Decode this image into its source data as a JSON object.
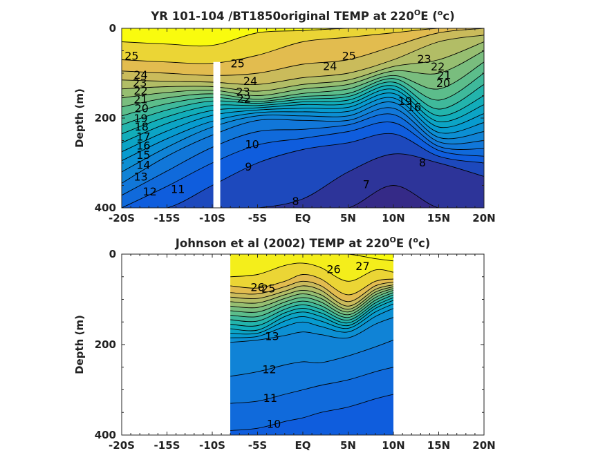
{
  "chart_data": [
    {
      "type": "heatmap",
      "subtype": "filled-contour",
      "title": "YR 101-104 /BT1850original TEMP at 220ºE (ºc)",
      "title_parts": {
        "main": "YR 101-104 /BT1850original TEMP at 220",
        "sup1": "O",
        "mid": "E (",
        "sup2": "o",
        "end": "c)"
      },
      "ylabel": "Depth (m)",
      "xlim": [
        -20,
        20
      ],
      "ylim": [
        400,
        0
      ],
      "y_reversed": true,
      "x_ticks": [
        -20,
        -15,
        -10,
        -5,
        0,
        5,
        10,
        15,
        20
      ],
      "x_tick_labels": [
        "-20S",
        "-15S",
        "-10S",
        "-5S",
        "EQ",
        "5N",
        "10N",
        "15N",
        "20N"
      ],
      "y_ticks": [
        0,
        200,
        400
      ],
      "y_tick_labels": [
        "0",
        "200",
        "400"
      ],
      "data_extent_x": [
        -20,
        20
      ],
      "gap_column_x": -9.5,
      "colormap": "parula",
      "color_range": [
        7,
        27
      ],
      "contour_levels": [
        7,
        8,
        9,
        10,
        11,
        12,
        13,
        14,
        15,
        16,
        17,
        18,
        19,
        20,
        21,
        22,
        23,
        24,
        25,
        26,
        27
      ],
      "contour_labels": [
        {
          "text": "25",
          "x": -18.9,
          "y": 70
        },
        {
          "text": "24",
          "x": -17.9,
          "y": 112
        },
        {
          "text": "23",
          "x": -18.0,
          "y": 130
        },
        {
          "text": "22",
          "x": -17.9,
          "y": 148
        },
        {
          "text": "21",
          "x": -17.9,
          "y": 167
        },
        {
          "text": "20",
          "x": -17.8,
          "y": 187
        },
        {
          "text": "19",
          "x": -17.9,
          "y": 209
        },
        {
          "text": "18",
          "x": -17.8,
          "y": 228
        },
        {
          "text": "17",
          "x": -17.6,
          "y": 250
        },
        {
          "text": "16",
          "x": -17.6,
          "y": 270
        },
        {
          "text": "15",
          "x": -17.6,
          "y": 291
        },
        {
          "text": "14",
          "x": -17.6,
          "y": 313
        },
        {
          "text": "13",
          "x": -17.9,
          "y": 339
        },
        {
          "text": "12",
          "x": -16.9,
          "y": 372
        },
        {
          "text": "11",
          "x": -13.8,
          "y": 367
        },
        {
          "text": "25",
          "x": -7.2,
          "y": 87
        },
        {
          "text": "24",
          "x": -5.8,
          "y": 126
        },
        {
          "text": "23",
          "x": -6.6,
          "y": 150
        },
        {
          "text": "22",
          "x": -6.5,
          "y": 165
        },
        {
          "text": "10",
          "x": -5.6,
          "y": 267
        },
        {
          "text": "9",
          "x": -6.0,
          "y": 317
        },
        {
          "text": "8",
          "x": -0.8,
          "y": 394
        },
        {
          "text": "7",
          "x": 7.0,
          "y": 356
        },
        {
          "text": "8",
          "x": 13.2,
          "y": 308
        },
        {
          "text": "24",
          "x": 3.0,
          "y": 93
        },
        {
          "text": "25",
          "x": 5.1,
          "y": 70
        },
        {
          "text": "23",
          "x": 13.4,
          "y": 77
        },
        {
          "text": "22",
          "x": 14.9,
          "y": 94
        },
        {
          "text": "21",
          "x": 15.6,
          "y": 113
        },
        {
          "text": "20",
          "x": 15.5,
          "y": 131
        },
        {
          "text": "19",
          "x": 11.3,
          "y": 171
        },
        {
          "text": "16",
          "x": 12.3,
          "y": 184
        }
      ],
      "sections_x": [
        -20,
        -15,
        -10,
        -5,
        0,
        5,
        10,
        15,
        20
      ],
      "isotherm_depths_m": {
        "26": [
          30,
          35,
          38,
          10,
          5,
          0,
          0,
          0,
          0
        ],
        "25": [
          70,
          75,
          78,
          60,
          30,
          20,
          10,
          0,
          0
        ],
        "24": [
          95,
          100,
          105,
          100,
          80,
          70,
          40,
          10,
          0
        ],
        "23": [
          115,
          118,
          120,
          125,
          110,
          100,
          70,
          30,
          15
        ],
        "22": [
          135,
          130,
          130,
          140,
          125,
          115,
          85,
          70,
          30
        ],
        "21": [
          155,
          143,
          138,
          150,
          135,
          125,
          95,
          100,
          50
        ],
        "20": [
          175,
          155,
          146,
          158,
          145,
          135,
          105,
          135,
          75
        ],
        "19": [
          195,
          168,
          154,
          163,
          152,
          145,
          112,
          160,
          100
        ],
        "18": [
          215,
          182,
          162,
          167,
          158,
          152,
          120,
          180,
          125
        ],
        "17": [
          235,
          197,
          172,
          172,
          164,
          160,
          128,
          195,
          150
        ],
        "16": [
          255,
          212,
          183,
          177,
          170,
          168,
          136,
          208,
          170
        ],
        "15": [
          275,
          229,
          194,
          182,
          178,
          176,
          145,
          220,
          190
        ],
        "14": [
          295,
          246,
          207,
          188,
          186,
          185,
          155,
          232,
          210
        ],
        "13": [
          320,
          265,
          220,
          195,
          195,
          195,
          165,
          243,
          230
        ],
        "12": [
          345,
          285,
          238,
          205,
          205,
          205,
          178,
          253,
          250
        ],
        "11": [
          372,
          318,
          265,
          230,
          225,
          215,
          192,
          263,
          268
        ],
        "10": [
          400,
          352,
          300,
          260,
          245,
          230,
          210,
          272,
          285
        ],
        "9": [
          400,
          400,
          350,
          300,
          270,
          255,
          235,
          285,
          300
        ],
        "8": [
          400,
          400,
          400,
          400,
          380,
          320,
          280,
          300,
          330
        ],
        "7": [
          400,
          400,
          400,
          400,
          400,
          400,
          350,
          400,
          400
        ]
      }
    },
    {
      "type": "heatmap",
      "subtype": "filled-contour",
      "title": "Johnson et al (2002) TEMP at 220ºE (ºc)",
      "title_parts": {
        "main": "Johnson et al (2002) TEMP at 220",
        "sup1": "O",
        "mid": "E (",
        "sup2": "o",
        "end": "c)"
      },
      "ylabel": "Depth (m)",
      "xlim": [
        -20,
        20
      ],
      "ylim": [
        400,
        0
      ],
      "y_reversed": true,
      "x_ticks": [
        -20,
        -15,
        -10,
        -5,
        0,
        5,
        10,
        15,
        20
      ],
      "x_tick_labels": [
        "-20S",
        "-15S",
        "-10S",
        "-5S",
        "EQ",
        "5N",
        "10N",
        "15N",
        "20N"
      ],
      "y_ticks": [
        0,
        200,
        400
      ],
      "y_tick_labels": [
        "0",
        "200",
        "400"
      ],
      "data_extent_x": [
        -8,
        10
      ],
      "colormap": "parula",
      "color_range": [
        7,
        27
      ],
      "contour_levels": [
        10,
        11,
        12,
        13,
        14,
        15,
        16,
        17,
        18,
        19,
        20,
        21,
        22,
        23,
        24,
        25,
        26,
        27
      ],
      "contour_labels": [
        {
          "text": "26",
          "x": -5.0,
          "y": 82
        },
        {
          "text": "25",
          "x": -3.8,
          "y": 85
        },
        {
          "text": "13",
          "x": -3.4,
          "y": 190
        },
        {
          "text": "12",
          "x": -3.7,
          "y": 263
        },
        {
          "text": "11",
          "x": -3.6,
          "y": 327
        },
        {
          "text": "10",
          "x": -3.2,
          "y": 384
        },
        {
          "text": "26",
          "x": 3.4,
          "y": 42
        },
        {
          "text": "27",
          "x": 6.6,
          "y": 35
        }
      ],
      "sections_x": [
        -8,
        -5,
        -2,
        0,
        2,
        5,
        8,
        10
      ],
      "isotherm_depths_m": {
        "27": [
          0,
          0,
          0,
          0,
          0,
          0,
          10,
          15
        ],
        "26": [
          50,
          45,
          25,
          20,
          30,
          60,
          35,
          40
        ],
        "25": [
          70,
          75,
          60,
          45,
          55,
          90,
          60,
          55
        ],
        "24": [
          85,
          88,
          72,
          60,
          70,
          105,
          70,
          62
        ],
        "23": [
          95,
          98,
          82,
          70,
          80,
          115,
          78,
          68
        ],
        "22": [
          105,
          108,
          90,
          80,
          90,
          122,
          84,
          72
        ],
        "21": [
          115,
          118,
          98,
          88,
          98,
          128,
          90,
          76
        ],
        "20": [
          125,
          128,
          106,
          96,
          106,
          134,
          96,
          80
        ],
        "19": [
          135,
          138,
          114,
          104,
          114,
          140,
          102,
          85
        ],
        "18": [
          145,
          148,
          122,
          112,
          122,
          146,
          108,
          90
        ],
        "17": [
          155,
          158,
          130,
          120,
          130,
          152,
          114,
          96
        ],
        "16": [
          165,
          168,
          138,
          128,
          138,
          158,
          120,
          102
        ],
        "15": [
          175,
          175,
          148,
          138,
          148,
          164,
          128,
          110
        ],
        "14": [
          185,
          182,
          160,
          150,
          160,
          172,
          138,
          120
        ],
        "13": [
          195,
          190,
          180,
          172,
          178,
          185,
          155,
          140
        ],
        "12": [
          270,
          260,
          245,
          238,
          240,
          225,
          205,
          190
        ],
        "11": [
          330,
          325,
          310,
          300,
          290,
          278,
          260,
          250
        ],
        "10": [
          390,
          385,
          370,
          362,
          350,
          338,
          320,
          310
        ]
      }
    }
  ]
}
